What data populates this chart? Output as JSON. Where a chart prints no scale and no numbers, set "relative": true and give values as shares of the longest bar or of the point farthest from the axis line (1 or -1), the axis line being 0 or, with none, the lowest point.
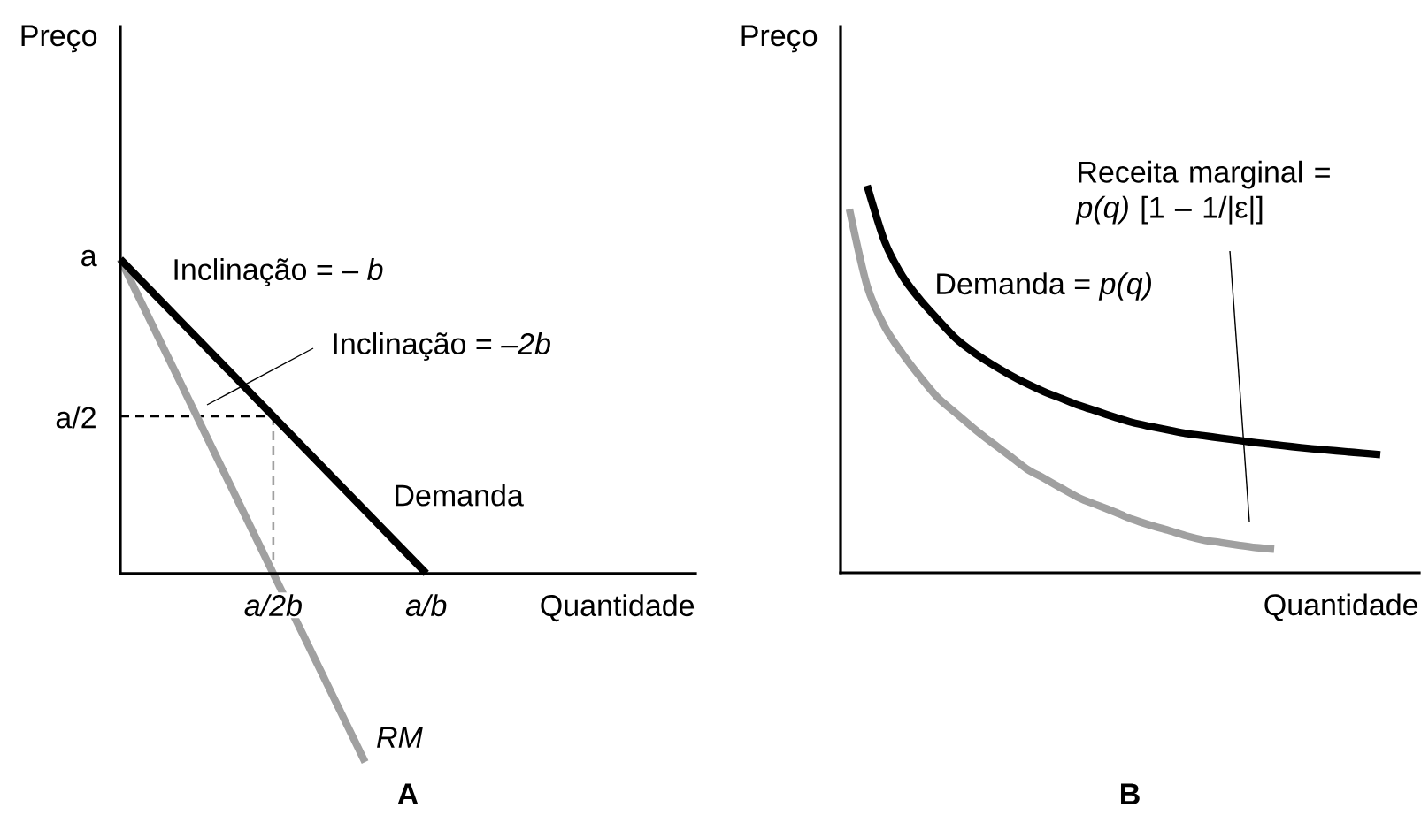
{
  "chart_data": [
    {
      "type": "line",
      "title": "A",
      "xlabel": "Quantidade",
      "ylabel": "Preço",
      "relative": true,
      "line_style": "solid",
      "categories": [
        null,
        null,
        null,
        null,
        null,
        "a/2b",
        null,
        null,
        null,
        null,
        "a/b",
        null,
        null,
        null,
        null,
        null,
        null,
        null,
        null
      ],
      "series": [
        {
          "name": "Demanda",
          "color": "#000000",
          "values": [
            1.0,
            0.9,
            0.8,
            0.7,
            0.6,
            0.5,
            0.4,
            0.3,
            0.2,
            0.1,
            0.0,
            null,
            null,
            null,
            null,
            null,
            null,
            null,
            null
          ]
        },
        {
          "name": "RM",
          "color": "#a0a0a0",
          "values": [
            1.0,
            0.8,
            0.6,
            0.4,
            0.2,
            0.0,
            -0.2,
            -0.4,
            -0.6,
            null,
            null,
            null,
            null,
            null,
            null,
            null,
            null,
            null,
            null
          ]
        },
        {
          "color": "#000000",
          "line_style": "dashed",
          "values": [
            0.5,
            0.5,
            0.5,
            0.5,
            0.5,
            0.5,
            null,
            null,
            null,
            null,
            null,
            null,
            null,
            null,
            null,
            null,
            null,
            null,
            null
          ]
        },
        {
          "color": "#a0a0a0",
          "line_style": "dashed",
          "x": [
            "a/2b",
            "a/2b"
          ],
          "values": [
            0.5,
            0
          ]
        }
      ],
      "annotations": [
        "a",
        "a/2",
        "Inclinação = – *b*",
        "Inclinação = *–2b*"
      ]
    },
    {
      "type": "line",
      "title": "B",
      "xlabel": "Quantidade",
      "ylabel": "Preço",
      "relative": true,
      "line_style": "solid",
      "categories": [
        null,
        null,
        null,
        null,
        null,
        null,
        null,
        null,
        null,
        null,
        null,
        null,
        null,
        null,
        null,
        null,
        null,
        null,
        null,
        null,
        null,
        null,
        null,
        null,
        null,
        null,
        null,
        null,
        null,
        null,
        null
      ],
      "series": [
        {
          "name": "Demanda = *p(q)*",
          "color": "#000000",
          "values": [
            null,
            1.0,
            0.855,
            0.766,
            0.705,
            0.654,
            0.606,
            0.57,
            0.54,
            0.513,
            0.489,
            0.468,
            0.45,
            0.432,
            0.417,
            0.402,
            0.388,
            0.378,
            0.369,
            0.36,
            0.354,
            0.348,
            0.342,
            0.336,
            0.331,
            0.326,
            0.321,
            0.317,
            0.313,
            0.309,
            0.305
          ]
        },
        {
          "color": "#a0a0a0",
          "values": [
            0.939,
            0.741,
            0.635,
            0.566,
            0.506,
            0.452,
            0.413,
            0.374,
            0.338,
            0.304,
            0.269,
            0.244,
            0.218,
            0.193,
            0.175,
            0.157,
            0.138,
            0.123,
            0.11,
            0.096,
            0.085,
            0.078,
            0.071,
            0.065,
            0.061,
            null,
            null,
            null,
            null,
            null,
            null
          ]
        }
      ],
      "annotations": [
        "Receita marginal = *p(q)* [1 – 1/|ε|]"
      ]
    }
  ]
}
